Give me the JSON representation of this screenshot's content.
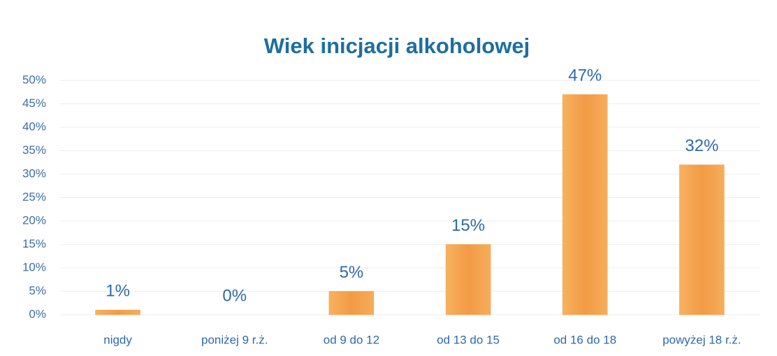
{
  "chart_data": {
    "type": "bar",
    "title": "Wiek inicjacji alkoholowej",
    "categories": [
      "nigdy",
      "poniżej 9 r.ż.",
      "od 9 do 12",
      "od 13 do 15",
      "od 16 do 18",
      "powyżej 18 r.ż."
    ],
    "values": [
      1,
      0,
      5,
      15,
      47,
      32
    ],
    "value_labels": [
      "1%",
      "0%",
      "5%",
      "15%",
      "47%",
      "32%"
    ],
    "color": "#f5a04c",
    "ylim": [
      0,
      50
    ],
    "yticks": [
      {
        "value": 0,
        "label": "0%"
      },
      {
        "value": 5,
        "label": "5%"
      },
      {
        "value": 10,
        "label": "10%"
      },
      {
        "value": 15,
        "label": "15%"
      },
      {
        "value": 20,
        "label": "20%"
      },
      {
        "value": 25,
        "label": "25%"
      },
      {
        "value": 30,
        "label": "30%"
      },
      {
        "value": 35,
        "label": "35%"
      },
      {
        "value": 40,
        "label": "40%"
      },
      {
        "value": 45,
        "label": "45%"
      },
      {
        "value": 50,
        "label": "50%"
      }
    ],
    "grid": true
  }
}
